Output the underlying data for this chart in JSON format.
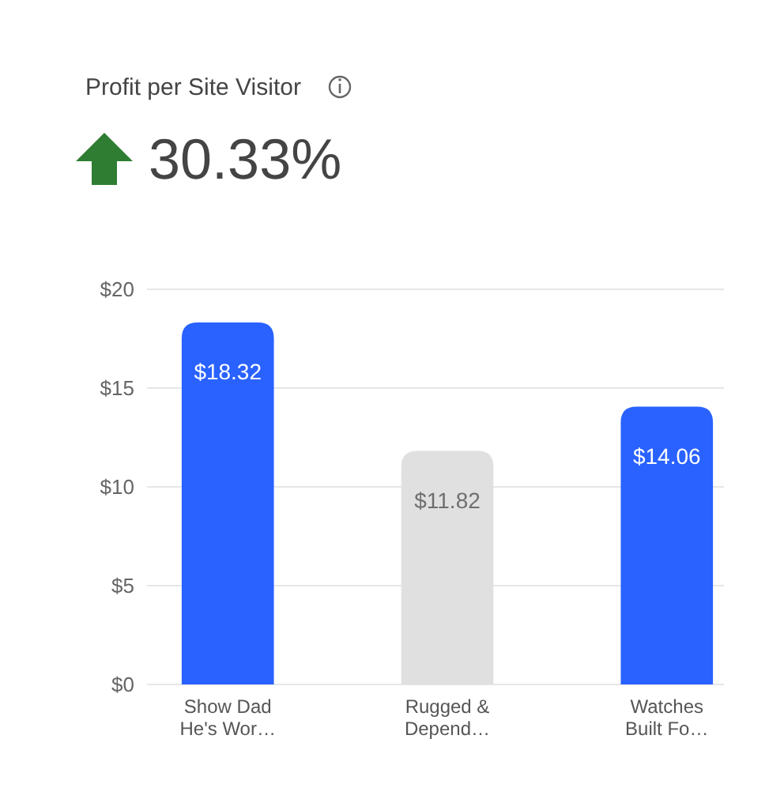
{
  "chart_data": {
    "type": "bar",
    "title": "Profit per Site Visitor",
    "subtitle": "30.33%",
    "categories": [
      "Show Dad He's Wor…",
      "Rugged & Depend…",
      "Watches Built Fo…"
    ],
    "values": [
      18.32,
      11.82,
      14.06
    ],
    "colors": [
      "#2962ff",
      "#e0e0e0",
      "#2962ff"
    ],
    "value_labels": [
      "$18.32",
      "$11.82",
      "$14.06"
    ],
    "ylim": [
      0,
      20
    ],
    "yticks": [
      {
        "value": 0,
        "label": "$0"
      },
      {
        "value": 5,
        "label": "$5"
      },
      {
        "value": 10,
        "label": "$10"
      },
      {
        "value": 15,
        "label": "$15"
      },
      {
        "value": 20,
        "label": "$20"
      }
    ],
    "grid": "y"
  }
}
